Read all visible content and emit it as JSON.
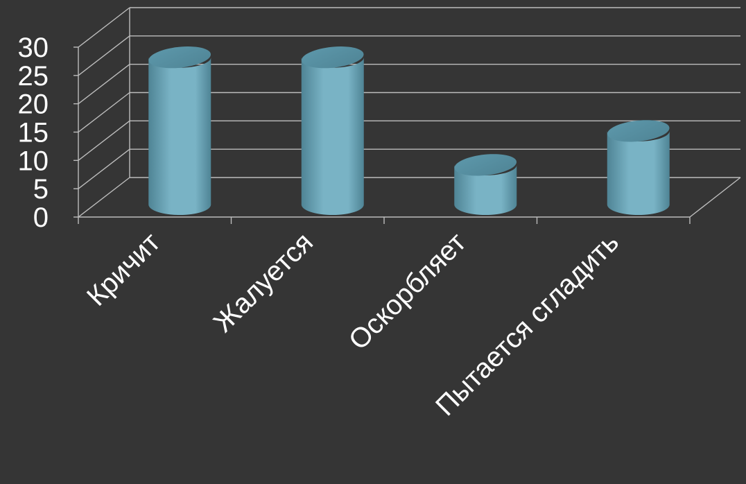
{
  "chart_data": {
    "type": "bar",
    "style": "3d-cylinder",
    "categories": [
      "Кричит",
      "Жалуется",
      "Оскорбляет",
      "Пытается сгладить"
    ],
    "series": [
      {
        "values": [
          26,
          26,
          7,
          13
        ]
      }
    ],
    "ylim": [
      0,
      30
    ],
    "yticks": [
      0,
      5,
      10,
      15,
      20,
      25,
      30
    ],
    "grid": true,
    "legend": "none",
    "colors": {
      "background": "#353535",
      "bar": "#79b3c5",
      "bar_dark": "#4f8495",
      "bar_top": "#5d98ab",
      "grid": "#bdbdbd",
      "text": "#ffffff"
    }
  }
}
